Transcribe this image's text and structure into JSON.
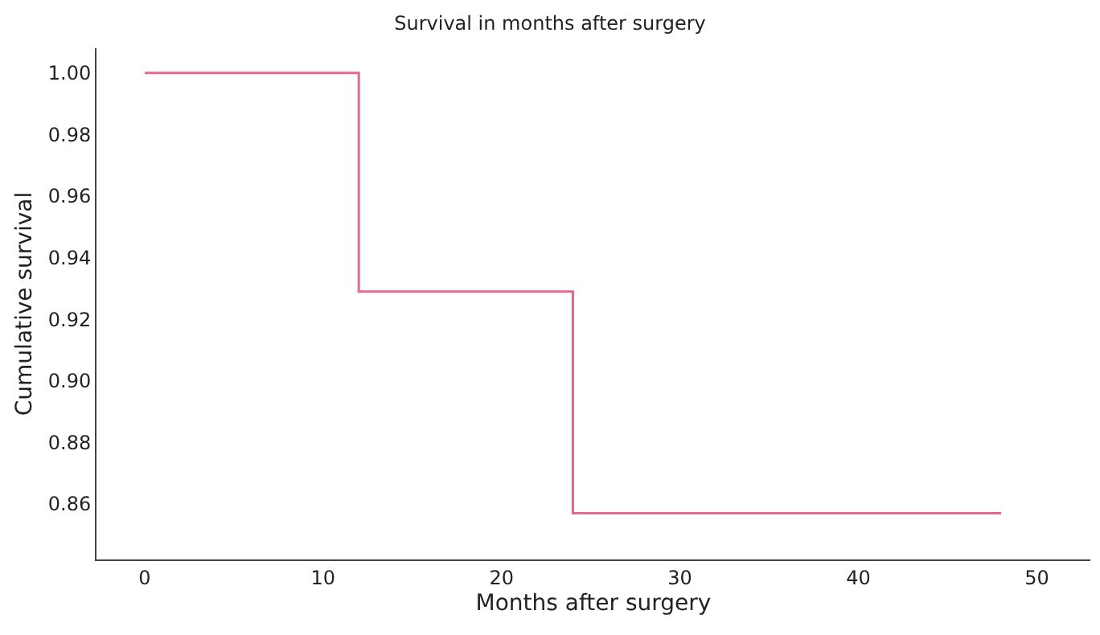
{
  "chart_data": {
    "type": "step",
    "title": "Survival in months after surgery",
    "xlabel": "Months after surgery",
    "ylabel": "Cumulative survival",
    "x": [
      0,
      12,
      24,
      48
    ],
    "series": [
      {
        "color": "#e8658e",
        "values": [
          1.0,
          0.929,
          0.857,
          0.857
        ]
      }
    ],
    "xlim": [
      -2.7,
      53
    ],
    "xticks": [
      0,
      10,
      20,
      30,
      40,
      50
    ],
    "ylim": [
      0.842,
      1.008
    ],
    "yticks": [
      {
        "value": 0.86,
        "label": "0.86"
      },
      {
        "value": 0.88,
        "label": "0.88"
      },
      {
        "value": 0.9,
        "label": "0.90"
      },
      {
        "value": 0.92,
        "label": "0.92"
      },
      {
        "value": 0.94,
        "label": "0.94"
      },
      {
        "value": 0.96,
        "label": "0.96"
      },
      {
        "value": 0.98,
        "label": "0.98"
      },
      {
        "value": 1.0,
        "label": "1.00"
      }
    ],
    "legend": false,
    "marker": "none",
    "line_style": "solid"
  }
}
